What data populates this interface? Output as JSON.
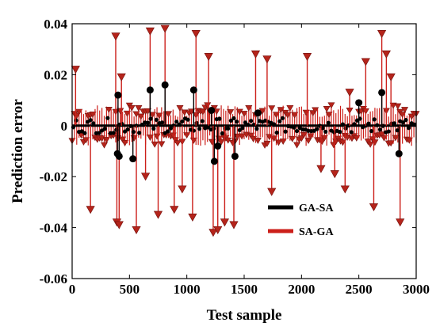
{
  "chart_data": {
    "type": "scatter",
    "title": "",
    "xlabel": "Test sample",
    "ylabel": "Prediction error",
    "xlim": [
      0,
      3000
    ],
    "ylim": [
      -0.06,
      0.04
    ],
    "x_ticks": [
      "0",
      "500",
      "1000",
      "1500",
      "2000",
      "2500",
      "3000"
    ],
    "y_ticks": [
      "0.04",
      "0.02",
      "0",
      "-0.02",
      "-0.04",
      "-0.06"
    ],
    "x_tick_values": [
      0,
      500,
      1000,
      1500,
      2000,
      2500,
      3000
    ],
    "y_tick_values": [
      0.04,
      0.02,
      0,
      -0.02,
      -0.04,
      -0.06
    ],
    "grid": false,
    "legend_position": "lower-right",
    "series": [
      {
        "name": "GA-SA",
        "color": "#000000",
        "marker": "circle",
        "outliers": [
          {
            "x": 400,
            "y": 0.012
          },
          {
            "x": 395,
            "y": -0.011
          },
          {
            "x": 410,
            "y": -0.012
          },
          {
            "x": 530,
            "y": -0.013
          },
          {
            "x": 680,
            "y": 0.014
          },
          {
            "x": 810,
            "y": 0.016
          },
          {
            "x": 1060,
            "y": 0.014
          },
          {
            "x": 1215,
            "y": 0.006
          },
          {
            "x": 1240,
            "y": -0.014
          },
          {
            "x": 1270,
            "y": -0.008
          },
          {
            "x": 1420,
            "y": -0.012
          },
          {
            "x": 1620,
            "y": 0.005
          },
          {
            "x": 2500,
            "y": 0.009
          },
          {
            "x": 2700,
            "y": 0.013
          },
          {
            "x": 2850,
            "y": -0.011
          }
        ]
      },
      {
        "name": "SA-GA",
        "color": "#cc1f1a",
        "marker": "triangle-down",
        "outliers": [
          {
            "x": 30,
            "y": 0.022
          },
          {
            "x": 160,
            "y": -0.033
          },
          {
            "x": 380,
            "y": 0.035
          },
          {
            "x": 390,
            "y": -0.038
          },
          {
            "x": 410,
            "y": -0.039
          },
          {
            "x": 430,
            "y": 0.019
          },
          {
            "x": 560,
            "y": -0.041
          },
          {
            "x": 640,
            "y": -0.02
          },
          {
            "x": 680,
            "y": 0.037
          },
          {
            "x": 750,
            "y": -0.035
          },
          {
            "x": 810,
            "y": 0.038
          },
          {
            "x": 890,
            "y": -0.033
          },
          {
            "x": 960,
            "y": -0.025
          },
          {
            "x": 1050,
            "y": -0.036
          },
          {
            "x": 1080,
            "y": 0.036
          },
          {
            "x": 1190,
            "y": 0.027
          },
          {
            "x": 1230,
            "y": -0.042
          },
          {
            "x": 1270,
            "y": -0.041
          },
          {
            "x": 1330,
            "y": -0.038
          },
          {
            "x": 1410,
            "y": -0.039
          },
          {
            "x": 1600,
            "y": 0.028
          },
          {
            "x": 1700,
            "y": 0.026
          },
          {
            "x": 1740,
            "y": -0.026
          },
          {
            "x": 2050,
            "y": 0.027
          },
          {
            "x": 2170,
            "y": -0.017
          },
          {
            "x": 2290,
            "y": -0.019
          },
          {
            "x": 2380,
            "y": -0.025
          },
          {
            "x": 2420,
            "y": 0.013
          },
          {
            "x": 2560,
            "y": 0.025
          },
          {
            "x": 2630,
            "y": -0.032
          },
          {
            "x": 2700,
            "y": 0.036
          },
          {
            "x": 2740,
            "y": 0.028
          },
          {
            "x": 2780,
            "y": 0.019
          },
          {
            "x": 2860,
            "y": -0.038
          }
        ]
      }
    ]
  }
}
